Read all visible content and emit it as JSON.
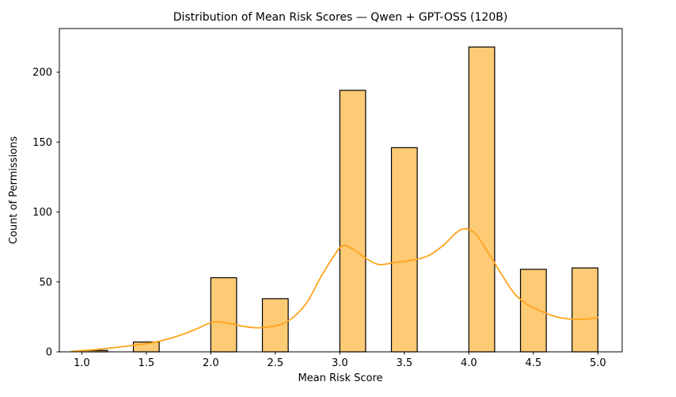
{
  "chart_data": {
    "type": "bar",
    "subtype": "histogram_with_kde",
    "title": "Distribution of Mean Risk Scores — Qwen + GPT-OSS (120B)",
    "xlabel": "Mean Risk Score",
    "ylabel": "Count of Permissions",
    "xlim": [
      0.8264,
      5.1883
    ],
    "ylim": [
      0,
      231.2
    ],
    "grid": false,
    "legend": "none",
    "x_ticks": [
      1.0,
      1.5,
      2.0,
      2.5,
      3.0,
      3.5,
      4.0,
      4.5,
      5.0
    ],
    "x_tick_labels": [
      "1.0",
      "1.5",
      "2.0",
      "2.5",
      "3.0",
      "3.5",
      "4.0",
      "4.5",
      "5.0"
    ],
    "y_ticks": [
      0,
      50,
      100,
      150,
      200
    ],
    "y_tick_labels": [
      "0",
      "50",
      "100",
      "150",
      "200"
    ],
    "bin_width": 0.2,
    "bars": [
      {
        "bin_start": 1.0,
        "bin_end": 1.2,
        "center": 1.1,
        "count": 1
      },
      {
        "bin_start": 1.4,
        "bin_end": 1.6,
        "center": 1.5,
        "count": 7
      },
      {
        "bin_start": 2.0,
        "bin_end": 2.2,
        "center": 2.1,
        "count": 53
      },
      {
        "bin_start": 2.4,
        "bin_end": 2.6,
        "center": 2.5,
        "count": 38
      },
      {
        "bin_start": 3.0,
        "bin_end": 3.2,
        "center": 3.1,
        "count": 187
      },
      {
        "bin_start": 3.4,
        "bin_end": 3.6,
        "center": 3.5,
        "count": 146
      },
      {
        "bin_start": 4.0,
        "bin_end": 4.2,
        "center": 4.1,
        "count": 218
      },
      {
        "bin_start": 4.4,
        "bin_end": 4.6,
        "center": 4.5,
        "count": 59
      },
      {
        "bin_start": 4.8,
        "bin_end": 5.0,
        "center": 4.9,
        "count": 60
      }
    ],
    "kde_curve": {
      "x": [
        0.92,
        1.0,
        1.12,
        1.25,
        1.38,
        1.5,
        1.62,
        1.75,
        1.88,
        2.02,
        2.15,
        2.25,
        2.35,
        2.45,
        2.55,
        2.65,
        2.75,
        2.85,
        2.95,
        3.02,
        3.1,
        3.2,
        3.3,
        3.42,
        3.55,
        3.68,
        3.8,
        3.9,
        3.97,
        4.05,
        4.15,
        4.25,
        4.35,
        4.45,
        4.55,
        4.65,
        4.75,
        4.85,
        4.93,
        5.0
      ],
      "y": [
        0.3,
        0.9,
        1.7,
        3.0,
        4.4,
        5.8,
        8.0,
        11.5,
        16.0,
        21.3,
        20.2,
        18.3,
        17.2,
        17.8,
        19.8,
        25.5,
        36.0,
        53.0,
        68.0,
        75.8,
        73.5,
        67.0,
        62.5,
        63.8,
        65.3,
        68.5,
        76.0,
        85.0,
        88.0,
        84.5,
        71.0,
        56.0,
        42.0,
        34.0,
        29.5,
        25.8,
        23.8,
        23.2,
        23.5,
        24.5
      ]
    },
    "colors": {
      "bar_fill": "#fdca76",
      "bar_edge": "#000000",
      "kde_line": "#ffa41c",
      "text": "#000000",
      "spine": "#000000"
    }
  }
}
